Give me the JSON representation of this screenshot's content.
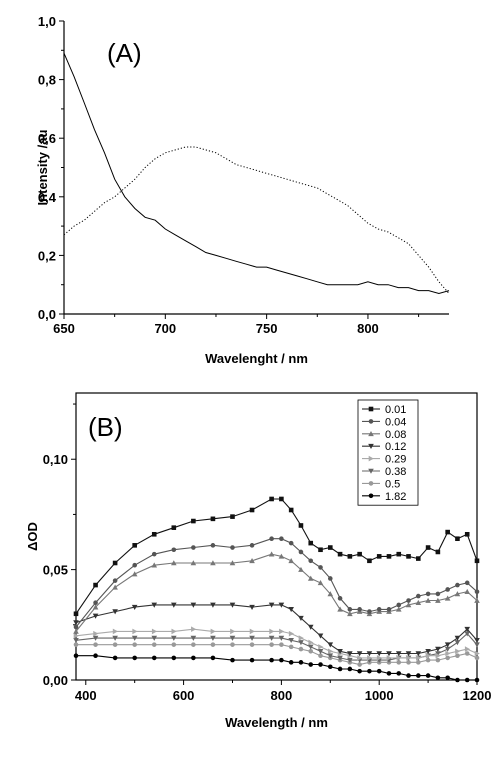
{
  "chart_data": [
    {
      "type": "line",
      "panel_label": "(A)",
      "title": "",
      "xlabel": "Wavelenght / nm",
      "ylabel": "Intensity /au",
      "xlim": [
        650,
        840
      ],
      "ylim": [
        0.0,
        1.0
      ],
      "xticks": [
        650,
        700,
        750,
        800
      ],
      "xtick_labels": [
        "650",
        "700",
        "750",
        "800"
      ],
      "yticks": [
        0.0,
        0.2,
        0.4,
        0.6,
        0.8,
        1.0
      ],
      "ytick_labels": [
        "0,0",
        "0,2",
        "0,4",
        "0,6",
        "0,8",
        "1,0"
      ],
      "grid": false,
      "series": [
        {
          "style": "solid",
          "color": "#000000",
          "x": [
            650,
            655,
            660,
            665,
            670,
            675,
            680,
            685,
            690,
            695,
            700,
            705,
            710,
            715,
            720,
            725,
            730,
            735,
            740,
            745,
            750,
            755,
            760,
            765,
            770,
            775,
            780,
            785,
            790,
            795,
            800,
            805,
            810,
            815,
            820,
            825,
            830,
            835,
            840
          ],
          "y": [
            0.89,
            0.81,
            0.72,
            0.63,
            0.55,
            0.46,
            0.4,
            0.36,
            0.33,
            0.32,
            0.29,
            0.27,
            0.25,
            0.23,
            0.21,
            0.2,
            0.19,
            0.18,
            0.17,
            0.16,
            0.16,
            0.15,
            0.14,
            0.13,
            0.12,
            0.11,
            0.1,
            0.1,
            0.1,
            0.1,
            0.11,
            0.1,
            0.1,
            0.09,
            0.09,
            0.08,
            0.08,
            0.07,
            0.08
          ]
        },
        {
          "style": "dotted",
          "color": "#000000",
          "x": [
            650,
            655,
            660,
            665,
            670,
            675,
            680,
            685,
            690,
            695,
            700,
            705,
            710,
            715,
            720,
            725,
            730,
            735,
            740,
            745,
            750,
            755,
            760,
            765,
            770,
            775,
            780,
            785,
            790,
            795,
            800,
            805,
            810,
            815,
            820,
            825,
            830,
            835,
            840
          ],
          "y": [
            0.27,
            0.3,
            0.32,
            0.35,
            0.38,
            0.4,
            0.43,
            0.46,
            0.5,
            0.53,
            0.55,
            0.56,
            0.57,
            0.57,
            0.56,
            0.55,
            0.53,
            0.51,
            0.5,
            0.49,
            0.48,
            0.47,
            0.46,
            0.45,
            0.44,
            0.43,
            0.41,
            0.39,
            0.37,
            0.34,
            0.31,
            0.29,
            0.28,
            0.26,
            0.24,
            0.2,
            0.16,
            0.11,
            0.07
          ]
        }
      ]
    },
    {
      "type": "line",
      "panel_label": "(B)",
      "title": "",
      "xlabel": "Wavelength / nm",
      "ylabel": "ΔOD",
      "xlim": [
        380,
        1200
      ],
      "ylim": [
        0.0,
        0.13
      ],
      "xticks": [
        400,
        600,
        800,
        1000,
        1200
      ],
      "xtick_labels": [
        "400",
        "600",
        "800",
        "1000",
        "1200"
      ],
      "yticks": [
        0.0,
        0.05,
        0.1
      ],
      "ytick_labels": [
        "0,00",
        "0,05",
        "0,10"
      ],
      "grid": false,
      "legend_position": "top-right",
      "x": [
        380,
        420,
        460,
        500,
        540,
        580,
        620,
        660,
        700,
        740,
        780,
        800,
        820,
        840,
        860,
        880,
        900,
        920,
        940,
        960,
        980,
        1000,
        1020,
        1040,
        1060,
        1080,
        1100,
        1120,
        1140,
        1160,
        1180,
        1200
      ],
      "series": [
        {
          "name": "0.01",
          "color": "#111111",
          "marker": "square",
          "values": [
            0.03,
            0.043,
            0.053,
            0.061,
            0.066,
            0.069,
            0.072,
            0.073,
            0.074,
            0.077,
            0.082,
            0.082,
            0.077,
            0.07,
            0.062,
            0.059,
            0.06,
            0.057,
            0.056,
            0.057,
            0.054,
            0.056,
            0.056,
            0.057,
            0.056,
            0.055,
            0.06,
            0.058,
            0.067,
            0.064,
            0.066,
            0.054
          ]
        },
        {
          "name": "0.04",
          "color": "#555555",
          "marker": "circle",
          "values": [
            0.024,
            0.035,
            0.045,
            0.052,
            0.057,
            0.059,
            0.06,
            0.061,
            0.06,
            0.061,
            0.064,
            0.064,
            0.062,
            0.058,
            0.054,
            0.051,
            0.046,
            0.037,
            0.032,
            0.032,
            0.031,
            0.032,
            0.032,
            0.034,
            0.036,
            0.038,
            0.039,
            0.039,
            0.041,
            0.043,
            0.044,
            0.04
          ]
        },
        {
          "name": "0.08",
          "color": "#777777",
          "marker": "triangle-up",
          "values": [
            0.022,
            0.033,
            0.042,
            0.048,
            0.052,
            0.053,
            0.053,
            0.053,
            0.053,
            0.054,
            0.057,
            0.056,
            0.054,
            0.05,
            0.046,
            0.044,
            0.039,
            0.032,
            0.03,
            0.031,
            0.03,
            0.031,
            0.031,
            0.032,
            0.034,
            0.035,
            0.036,
            0.036,
            0.037,
            0.039,
            0.04,
            0.036
          ]
        },
        {
          "name": "0.12",
          "color": "#333333",
          "marker": "triangle-down",
          "values": [
            0.026,
            0.029,
            0.031,
            0.033,
            0.034,
            0.034,
            0.034,
            0.034,
            0.034,
            0.033,
            0.034,
            0.034,
            0.032,
            0.028,
            0.024,
            0.02,
            0.016,
            0.013,
            0.012,
            0.012,
            0.012,
            0.012,
            0.012,
            0.012,
            0.012,
            0.012,
            0.013,
            0.014,
            0.016,
            0.019,
            0.023,
            0.018
          ]
        },
        {
          "name": "0.29",
          "color": "#aaaaaa",
          "marker": "triangle-right",
          "values": [
            0.02,
            0.021,
            0.022,
            0.022,
            0.022,
            0.022,
            0.023,
            0.022,
            0.022,
            0.022,
            0.022,
            0.022,
            0.021,
            0.019,
            0.017,
            0.015,
            0.013,
            0.012,
            0.011,
            0.01,
            0.01,
            0.01,
            0.01,
            0.01,
            0.01,
            0.01,
            0.011,
            0.011,
            0.012,
            0.013,
            0.014,
            0.012
          ]
        },
        {
          "name": "0.38",
          "color": "#666666",
          "marker": "triangle-down",
          "values": [
            0.018,
            0.019,
            0.019,
            0.019,
            0.019,
            0.019,
            0.019,
            0.019,
            0.019,
            0.019,
            0.019,
            0.019,
            0.018,
            0.017,
            0.015,
            0.013,
            0.011,
            0.01,
            0.009,
            0.009,
            0.009,
            0.009,
            0.009,
            0.01,
            0.01,
            0.01,
            0.011,
            0.012,
            0.014,
            0.017,
            0.021,
            0.016
          ]
        },
        {
          "name": "0.5",
          "color": "#999999",
          "marker": "circle",
          "values": [
            0.016,
            0.016,
            0.016,
            0.016,
            0.016,
            0.016,
            0.016,
            0.016,
            0.016,
            0.016,
            0.016,
            0.016,
            0.015,
            0.014,
            0.013,
            0.011,
            0.01,
            0.009,
            0.008,
            0.007,
            0.008,
            0.008,
            0.008,
            0.008,
            0.008,
            0.008,
            0.009,
            0.009,
            0.01,
            0.011,
            0.012,
            0.01
          ]
        },
        {
          "name": "1.82",
          "color": "#000000",
          "marker": "circle",
          "values": [
            0.011,
            0.011,
            0.01,
            0.01,
            0.01,
            0.01,
            0.01,
            0.01,
            0.009,
            0.009,
            0.009,
            0.009,
            0.008,
            0.008,
            0.007,
            0.007,
            0.006,
            0.005,
            0.005,
            0.004,
            0.004,
            0.004,
            0.003,
            0.003,
            0.002,
            0.002,
            0.002,
            0.001,
            0.001,
            0.0,
            0.0,
            0.0
          ]
        }
      ]
    }
  ]
}
